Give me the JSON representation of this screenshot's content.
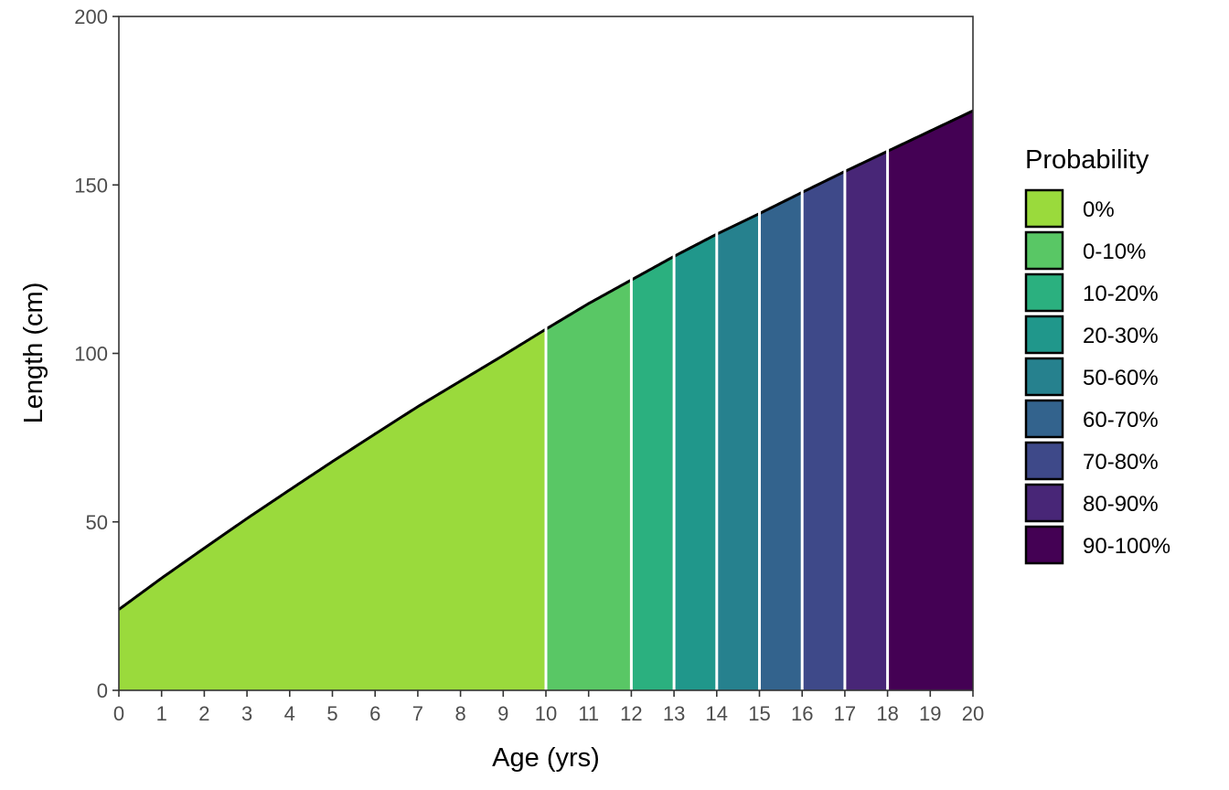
{
  "chart_data": {
    "type": "area",
    "xlabel": "Age (yrs)",
    "ylabel": "Length (cm)",
    "xlim": [
      0,
      20
    ],
    "ylim": [
      0,
      200
    ],
    "x_ticks": [
      0,
      1,
      2,
      3,
      4,
      5,
      6,
      7,
      8,
      9,
      10,
      11,
      12,
      13,
      14,
      15,
      16,
      17,
      18,
      19,
      20
    ],
    "y_ticks": [
      0,
      50,
      100,
      150,
      200
    ],
    "grid": false,
    "legend": {
      "title": "Probability",
      "position": "right"
    },
    "curve": {
      "x": [
        0,
        1,
        2,
        3,
        4,
        5,
        6,
        7,
        8,
        9,
        10,
        11,
        12,
        13,
        14,
        15,
        16,
        17,
        18,
        19,
        20
      ],
      "y": [
        24,
        33.3,
        42.2,
        51,
        59.5,
        67.9,
        76.1,
        84.2,
        91.8,
        99.4,
        107.2,
        114.8,
        121.8,
        128.8,
        135.4,
        141.5,
        147.8,
        154,
        160,
        166,
        172
      ]
    },
    "series": [
      {
        "name": "0%",
        "x_start": 0,
        "x_end": 10,
        "color": "#9ADA3C"
      },
      {
        "name": "0-10%",
        "x_start": 10,
        "x_end": 12,
        "color": "#59C765"
      },
      {
        "name": "10-20%",
        "x_start": 12,
        "x_end": 13,
        "color": "#2BB07F"
      },
      {
        "name": "20-30%",
        "x_start": 13,
        "x_end": 14,
        "color": "#20978B"
      },
      {
        "name": "50-60%",
        "x_start": 14,
        "x_end": 15,
        "color": "#26818E"
      },
      {
        "name": "60-70%",
        "x_start": 15,
        "x_end": 16,
        "color": "#33638D"
      },
      {
        "name": "70-80%",
        "x_start": 16,
        "x_end": 17,
        "color": "#3E4989"
      },
      {
        "name": "80-90%",
        "x_start": 17,
        "x_end": 18,
        "color": "#482677"
      },
      {
        "name": "90-100%",
        "x_start": 18,
        "x_end": 20,
        "color": "#440154"
      }
    ]
  }
}
